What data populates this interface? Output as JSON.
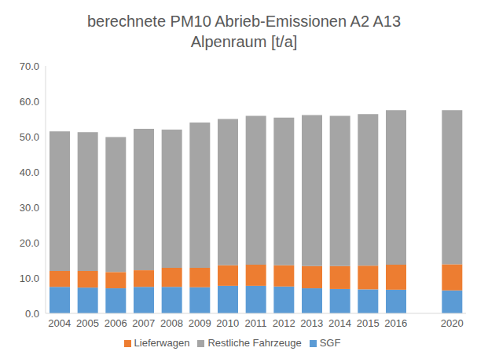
{
  "chart_data": {
    "type": "bar",
    "title": "berechnete PM10 Abrieb-Emissionen A2 A13\nAlpenraum [t/a]",
    "categories": [
      "2004",
      "2005",
      "2006",
      "2007",
      "2008",
      "2009",
      "2010",
      "2011",
      "2012",
      "2013",
      "2014",
      "2015",
      "2016",
      null,
      "2020"
    ],
    "series": [
      {
        "name": "SGF",
        "color": "#5b9bd5",
        "values": [
          7.5,
          7.3,
          7.1,
          7.5,
          7.5,
          7.4,
          7.8,
          7.8,
          7.6,
          7.1,
          6.9,
          6.8,
          6.7,
          null,
          6.5
        ]
      },
      {
        "name": "Lieferwagen",
        "color": "#ed7d31",
        "values": [
          4.5,
          4.7,
          4.6,
          4.7,
          5.4,
          5.5,
          5.8,
          6.0,
          6.0,
          6.3,
          6.5,
          6.7,
          7.1,
          null,
          7.4
        ]
      },
      {
        "name": "Restliche Fahrzeuge",
        "color": "#a5a5a5",
        "values": [
          39.5,
          39.3,
          38.2,
          40.0,
          39.1,
          41.1,
          41.4,
          42.1,
          41.8,
          42.7,
          42.5,
          42.9,
          43.7,
          null,
          43.6
        ]
      }
    ],
    "ylim": [
      0,
      70
    ],
    "yticks": [
      {
        "value": 0,
        "label": "0.0"
      },
      {
        "value": 10,
        "label": "10.0"
      },
      {
        "value": 20,
        "label": "20.0"
      },
      {
        "value": 30,
        "label": "30.0"
      },
      {
        "value": 40,
        "label": "40.0"
      },
      {
        "value": 50,
        "label": "50.0"
      },
      {
        "value": 60,
        "label": "60.0"
      },
      {
        "value": 70,
        "label": "70.0"
      }
    ],
    "stacked": true,
    "grid": false,
    "legend": "bottom"
  }
}
